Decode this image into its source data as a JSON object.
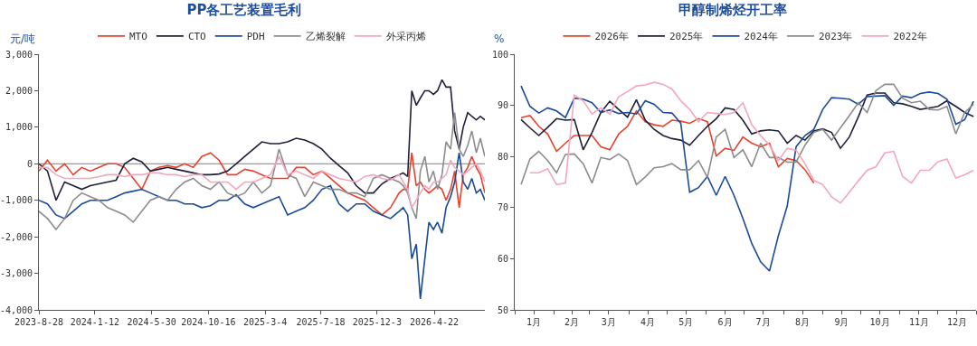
{
  "chart_data": [
    {
      "type": "line",
      "title": "PP各工艺装置毛利",
      "ylabel": "元/吨",
      "legend": "top",
      "x": [
        "2023-08-28",
        "2023-09-18",
        "2023-10-09",
        "2023-10-30",
        "2023-11-20",
        "2023-12-11",
        "2024-01-01",
        "2024-01-22",
        "2024-02-12",
        "2024-03-04",
        "2024-03-25",
        "2024-04-15",
        "2024-05-06",
        "2024-05-27",
        "2024-06-17",
        "2024-07-08",
        "2024-07-29",
        "2024-08-19",
        "2024-09-09",
        "2024-09-30",
        "2024-10-21",
        "2024-11-11",
        "2024-12-02",
        "2024-12-23",
        "2025-01-13",
        "2025-02-03",
        "2025-02-24",
        "2025-03-17",
        "2025-04-07",
        "2025-04-28",
        "2025-05-19",
        "2025-06-09",
        "2025-06-30",
        "2025-07-21",
        "2025-08-11",
        "2025-09-01",
        "2025-09-22",
        "2025-10-13",
        "2025-11-03",
        "2025-11-24",
        "2025-12-15",
        "2026-01-05",
        "2026-01-26",
        "2026-02-05",
        "2026-02-16",
        "2026-02-26",
        "2026-03-09",
        "2026-03-19",
        "2026-03-30",
        "2026-04-09",
        "2026-04-20",
        "2026-04-30",
        "2026-05-11",
        "2026-05-21",
        "2026-06-01",
        "2026-06-11",
        "2026-06-22",
        "2026-07-02",
        "2026-07-13",
        "2026-07-23",
        "2026-08-03",
        "2026-08-13",
        "2026-08-24"
      ],
      "xlim": [
        "2023-08-28",
        "2026-08-24"
      ],
      "xticks": [
        {
          "value": "2023-08-28",
          "label": "2023-8-28"
        },
        {
          "value": "2024-01-12",
          "label": "2024-1-12"
        },
        {
          "value": "2024-05-30",
          "label": "2024-5-30"
        },
        {
          "value": "2024-10-16",
          "label": "2024-10-16"
        },
        {
          "value": "2025-03-04",
          "label": "2025-3-4"
        },
        {
          "value": "2025-07-18",
          "label": "2025-7-18"
        },
        {
          "value": "2025-12-03",
          "label": "2025-12-3"
        },
        {
          "value": "2026-04-22",
          "label": "2026-4-22"
        }
      ],
      "ylim": [
        -4000,
        3000
      ],
      "yticks": [
        {
          "value": -4000,
          "label": "-4,000"
        },
        {
          "value": -3000,
          "label": "-3,000"
        },
        {
          "value": -2000,
          "label": "-2,000"
        },
        {
          "value": -1000,
          "label": "-1,000"
        },
        0,
        {
          "value": 1000,
          "label": "1,000"
        },
        {
          "value": 2000,
          "label": "2,000"
        },
        {
          "value": 3000,
          "label": "3,000"
        }
      ],
      "ref_lines": [
        {
          "axis": "y",
          "value": 0,
          "color": "#808080"
        }
      ],
      "series": [
        {
          "name": "MTO",
          "color": "#e8412c",
          "values": [
            -200,
            100,
            -200,
            0,
            -300,
            -100,
            -200,
            -100,
            0,
            0,
            -100,
            -400,
            -700,
            -200,
            -100,
            -50,
            -100,
            0,
            -100,
            200,
            300,
            100,
            -300,
            -300,
            -150,
            -200,
            -300,
            -400,
            -400,
            -400,
            -100,
            -100,
            -300,
            -200,
            -400,
            -600,
            -800,
            -900,
            -1000,
            -1200,
            -1400,
            -1200,
            -800,
            -700,
            -700,
            300,
            -600,
            -500,
            -700,
            -800,
            -700,
            -600,
            -700,
            -1000,
            -700,
            -200,
            -1200,
            -300,
            -100,
            200,
            -100,
            -300,
            -800
          ]
        },
        {
          "name": "CTO",
          "color": "#1f1f3a",
          "values": [
            0,
            -200,
            -1000,
            -500,
            -600,
            -700,
            -600,
            -550,
            -500,
            -450,
            0,
            150,
            50,
            -200,
            -150,
            -100,
            -150,
            -200,
            -250,
            -300,
            -300,
            -280,
            -200,
            0,
            200,
            400,
            600,
            550,
            550,
            600,
            700,
            650,
            550,
            400,
            150,
            -50,
            -250,
            -600,
            -800,
            -800,
            -550,
            -400,
            -300,
            -250,
            -350,
            2000,
            1600,
            1800,
            2000,
            2000,
            1900,
            2000,
            2300,
            2100,
            2100,
            900,
            400,
            1000,
            1400,
            1300,
            1200,
            1300,
            1200
          ]
        },
        {
          "name": "PDH",
          "color": "#1a4a9a",
          "values": [
            -1000,
            -1100,
            -1400,
            -1500,
            -1300,
            -1100,
            -1000,
            -1000,
            -1000,
            -900,
            -800,
            -750,
            -700,
            -800,
            -900,
            -1000,
            -1000,
            -1100,
            -1100,
            -1200,
            -1150,
            -1000,
            -1000,
            -850,
            -1100,
            -1200,
            -1100,
            -1000,
            -900,
            -1400,
            -1300,
            -1200,
            -1000,
            -700,
            -600,
            -1100,
            -1300,
            -1100,
            -1100,
            -1300,
            -1400,
            -1500,
            -1300,
            -1200,
            -1400,
            -2600,
            -2200,
            -3700,
            -2600,
            -1600,
            -1800,
            -1600,
            -1900,
            -1200,
            -900,
            -500,
            300,
            -500,
            -700,
            -400,
            -800,
            -700,
            -1000
          ]
        },
        {
          "name": "乙烯裂解",
          "color": "#8c8c8c",
          "values": [
            -1300,
            -1500,
            -1800,
            -1500,
            -1000,
            -800,
            -900,
            -1000,
            -1200,
            -1300,
            -1400,
            -1600,
            -1300,
            -1000,
            -900,
            -1000,
            -700,
            -500,
            -400,
            -600,
            -700,
            -500,
            -800,
            -900,
            -800,
            -500,
            -800,
            -600,
            400,
            -300,
            -400,
            -900,
            -500,
            -600,
            -700,
            -700,
            -800,
            -800,
            -900,
            -400,
            -300,
            -400,
            -500,
            -600,
            -800,
            -1200,
            -1500,
            -200,
            200,
            -500,
            -200,
            -700,
            -300,
            600,
            400,
            1400,
            400,
            200,
            500,
            900,
            300,
            700,
            200
          ]
        },
        {
          "name": "外采丙烯",
          "color": "#f4a6bd",
          "values": [
            -100,
            -100,
            -300,
            -400,
            -400,
            -400,
            -400,
            -350,
            -300,
            -300,
            -350,
            -300,
            -300,
            -250,
            -250,
            -300,
            -300,
            -350,
            -300,
            -300,
            -500,
            -500,
            -500,
            -700,
            -500,
            -500,
            -400,
            -300,
            200,
            -300,
            -200,
            -300,
            -400,
            -200,
            -300,
            -400,
            -450,
            -500,
            -350,
            -300,
            -400,
            -450,
            -300,
            -500,
            -700,
            -1200,
            -1000,
            -800,
            -600,
            -700,
            -500,
            -500,
            -400,
            -300,
            100,
            -100,
            -200,
            -300,
            -200,
            -100,
            0,
            -200,
            -500
          ]
        }
      ]
    },
    {
      "type": "line",
      "title": "甲醇制烯烃开工率",
      "ylabel": "%",
      "legend": "top",
      "xlim": [
        "--01-01",
        "--12-31"
      ],
      "x": [
        "--01-06",
        "--01-13",
        "--01-20",
        "--01-27",
        "--02-03",
        "--02-10",
        "--02-17",
        "--02-24",
        "--03-03",
        "--03-10",
        "--03-17",
        "--03-24",
        "--03-31",
        "--04-07",
        "--04-14",
        "--04-21",
        "--04-28",
        "--05-05",
        "--05-12",
        "--05-19",
        "--05-26",
        "--06-02",
        "--06-09",
        "--06-16",
        "--06-23",
        "--06-30",
        "--07-07",
        "--07-14",
        "--07-21",
        "--07-28",
        "--08-04",
        "--08-11",
        "--08-18",
        "--08-25",
        "--09-01",
        "--09-08",
        "--09-15",
        "--09-22",
        "--09-29",
        "--10-06",
        "--10-13",
        "--10-20",
        "--10-27",
        "--11-03",
        "--11-10",
        "--11-17",
        "--11-24",
        "--12-01",
        "--12-08",
        "--12-15",
        "--12-22",
        "--12-29"
      ],
      "xticks": [
        {
          "value": "--01-01",
          "label": null
        },
        {
          "value": "--01-16",
          "label": "1月"
        },
        {
          "value": "--02-01",
          "label": null
        },
        {
          "value": "--02-15",
          "label": "2月"
        },
        {
          "value": "--03-01",
          "label": null
        },
        {
          "value": "--03-16",
          "label": "3月"
        },
        {
          "value": "--04-01",
          "label": null
        },
        {
          "value": "--04-16",
          "label": "4月"
        },
        {
          "value": "--05-01",
          "label": null
        },
        {
          "value": "--05-16",
          "label": "5月"
        },
        {
          "value": "--06-01",
          "label": null
        },
        {
          "value": "--06-16",
          "label": "6月"
        },
        {
          "value": "--07-01",
          "label": null
        },
        {
          "value": "--07-16",
          "label": "7月"
        },
        {
          "value": "--08-01",
          "label": null
        },
        {
          "value": "--08-16",
          "label": "8月"
        },
        {
          "value": "--09-01",
          "label": null
        },
        {
          "value": "--09-16",
          "label": "9月"
        },
        {
          "value": "--10-01",
          "label": null
        },
        {
          "value": "--10-16",
          "label": "10月"
        },
        {
          "value": "--11-01",
          "label": null
        },
        {
          "value": "--11-16",
          "label": "11月"
        },
        {
          "value": "--12-01",
          "label": null
        },
        {
          "value": "--12-16",
          "label": "12月"
        },
        {
          "value": "--12-31",
          "label": null
        }
      ],
      "ylim": [
        50,
        100
      ],
      "yticks": [
        50,
        60,
        70,
        80,
        90,
        100
      ],
      "series": [
        {
          "name": "2026年",
          "color": "#e8412c",
          "values": [
            87.6,
            88.0,
            85.9,
            84.4,
            81.0,
            82.6,
            84.1,
            84.1,
            84.1,
            81.9,
            81.3,
            84.4,
            85.9,
            88.9,
            86.8,
            86.2,
            85.9,
            87.1,
            86.9,
            86.5,
            87.4,
            86.8,
            80.1,
            81.6,
            81.2,
            83.8,
            82.6,
            81.9,
            82.6,
            78.0,
            79.6,
            79.2,
            77.4,
            74.8,
            null,
            null,
            null,
            null,
            null,
            null,
            null,
            null,
            null,
            null,
            null,
            null,
            null,
            null,
            null,
            null,
            null,
            null
          ]
        },
        {
          "name": "2025年",
          "color": "#1f1f3a",
          "values": [
            87.2,
            85.6,
            84.1,
            85.7,
            87.4,
            87.1,
            87.2,
            81.3,
            84.7,
            88.6,
            90.8,
            89.2,
            87.7,
            91.1,
            87.1,
            85.3,
            84.1,
            83.5,
            83.2,
            82.2,
            84.1,
            85.9,
            87.4,
            89.5,
            89.2,
            87.1,
            84.4,
            85.0,
            85.2,
            85.0,
            82.6,
            84.1,
            83.2,
            85.0,
            85.4,
            84.7,
            81.6,
            83.8,
            87.7,
            92.0,
            92.4,
            92.4,
            90.5,
            90.3,
            89.8,
            89.2,
            89.5,
            89.8,
            90.9,
            89.8,
            88.6,
            87.8
          ]
        },
        {
          "name": "2024年",
          "color": "#1a4a9a",
          "values": [
            93.8,
            89.8,
            88.5,
            89.5,
            88.9,
            87.6,
            91.4,
            91.2,
            90.5,
            88.6,
            89.1,
            88.4,
            88.6,
            88.3,
            90.9,
            90.2,
            88.6,
            88.5,
            86.5,
            73.0,
            73.9,
            76.1,
            72.4,
            76.1,
            72.4,
            67.9,
            63.0,
            59.4,
            57.6,
            64.5,
            70.3,
            81.9,
            84.1,
            85.3,
            89.2,
            91.5,
            91.4,
            91.2,
            90.2,
            91.7,
            91.8,
            91.9,
            90.0,
            91.8,
            91.5,
            92.3,
            92.6,
            92.3,
            91.2,
            86.3,
            87.2,
            90.8
          ]
        },
        {
          "name": "2023年",
          "color": "#8c8c8c",
          "values": [
            74.5,
            79.5,
            81.0,
            79.2,
            76.8,
            80.4,
            80.5,
            78.6,
            74.8,
            79.8,
            79.4,
            80.5,
            79.2,
            74.5,
            76.0,
            77.8,
            78.0,
            78.6,
            77.4,
            77.4,
            79.2,
            75.9,
            83.8,
            85.3,
            79.8,
            81.3,
            78.0,
            82.6,
            79.8,
            79.8,
            78.9,
            78.9,
            82.2,
            84.7,
            85.3,
            83.2,
            85.6,
            88.0,
            90.5,
            88.6,
            92.9,
            94.1,
            94.1,
            91.4,
            90.5,
            90.8,
            89.2,
            89.1,
            89.8,
            84.4,
            88.6,
            90.2
          ]
        },
        {
          "name": "2022年",
          "color": "#f4a6bd",
          "values": [
            null,
            76.8,
            76.8,
            77.6,
            74.5,
            74.8,
            92.0,
            90.9,
            88.3,
            89.5,
            88.3,
            91.7,
            92.7,
            93.8,
            94.0,
            94.5,
            94.1,
            93.2,
            90.9,
            89.2,
            86.8,
            88.6,
            88.4,
            88.2,
            88.6,
            90.5,
            86.2,
            84.1,
            82.2,
            79.2,
            81.6,
            81.2,
            78.6,
            75.3,
            74.5,
            72.1,
            70.9,
            73.0,
            75.2,
            77.3,
            78.0,
            80.7,
            81.0,
            76.1,
            74.8,
            77.3,
            77.3,
            79.0,
            79.5,
            75.8,
            76.4,
            77.3
          ]
        }
      ]
    }
  ]
}
